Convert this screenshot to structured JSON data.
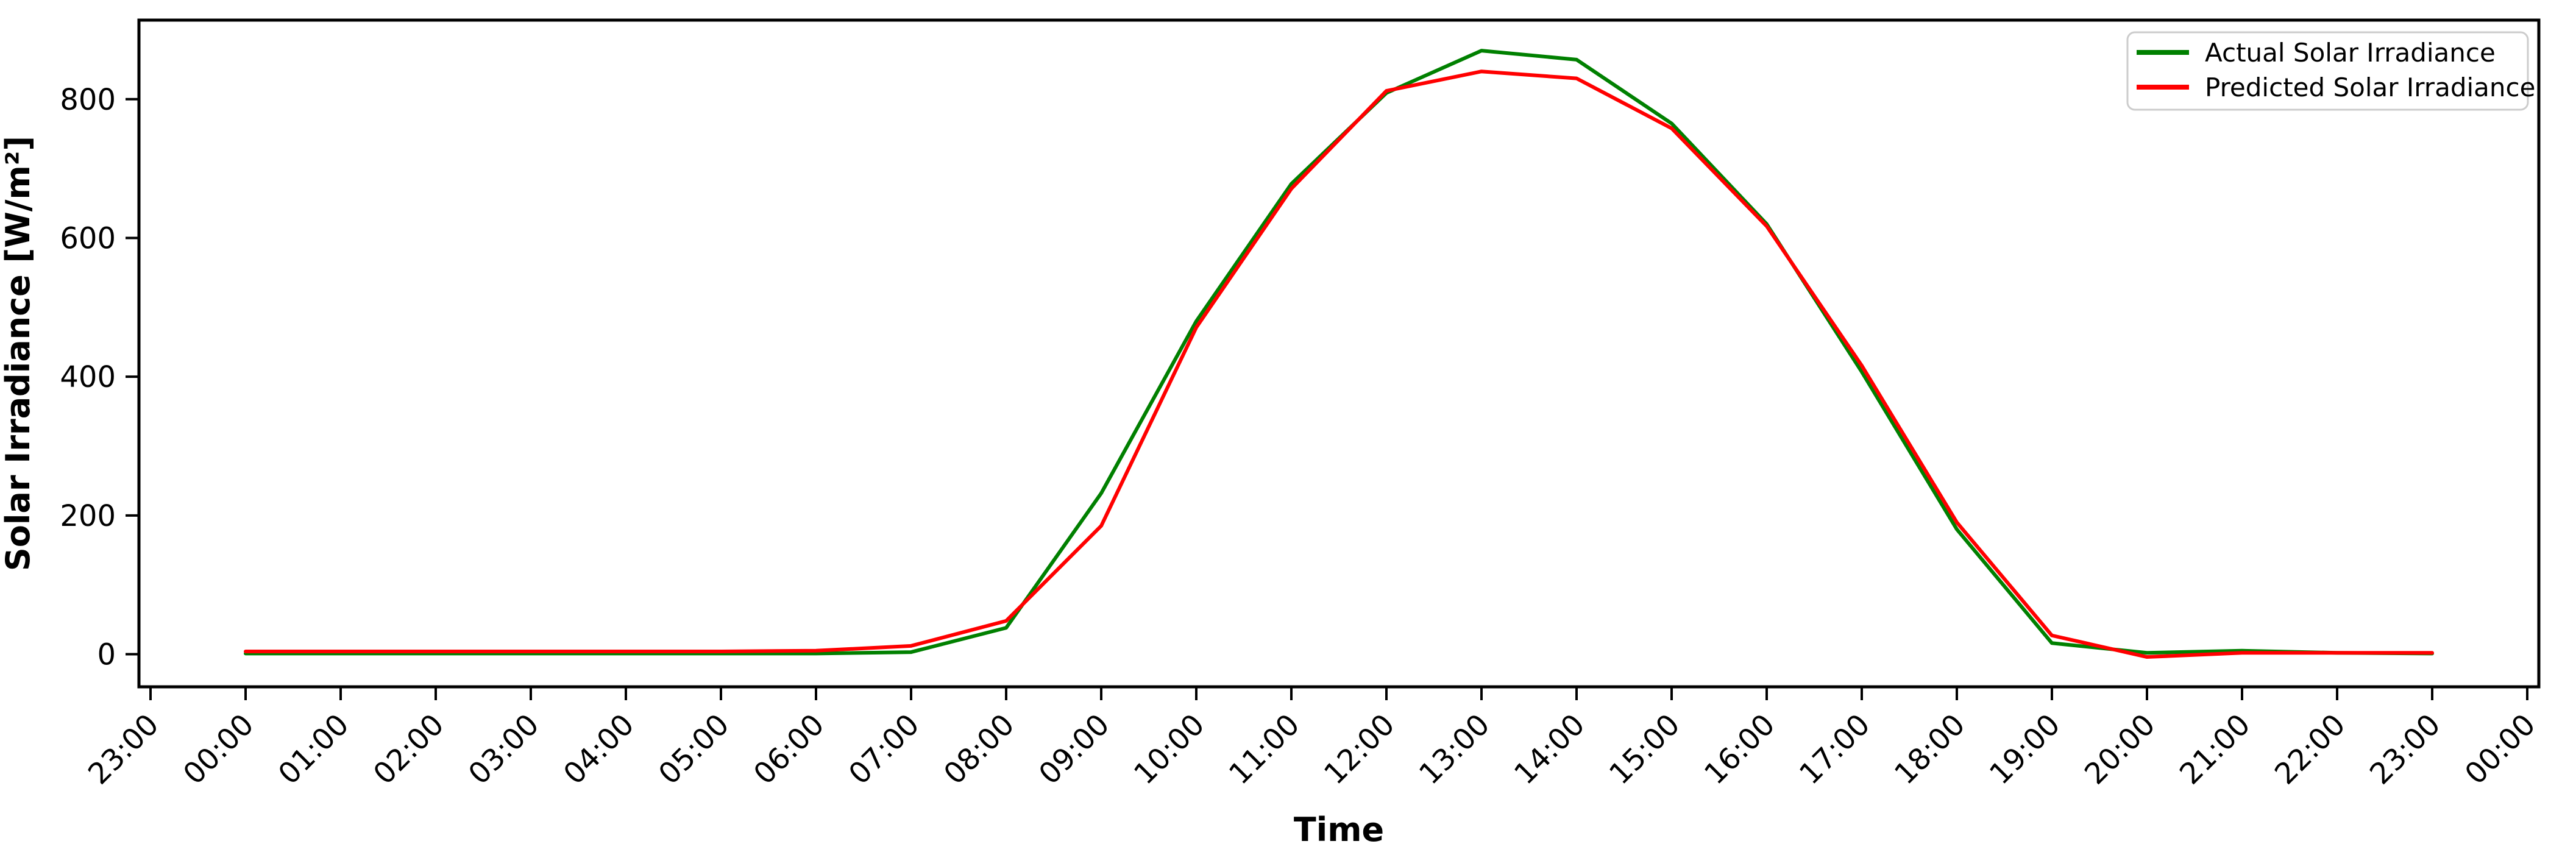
{
  "chart_data": {
    "type": "line",
    "title": "",
    "xlabel": "Time",
    "ylabel": "Solar Irradiance [W/m²]",
    "x_tick_labels": [
      "23:00",
      "00:00",
      "01:00",
      "02:00",
      "03:00",
      "04:00",
      "05:00",
      "06:00",
      "07:00",
      "08:00",
      "09:00",
      "10:00",
      "11:00",
      "12:00",
      "13:00",
      "14:00",
      "15:00",
      "16:00",
      "17:00",
      "18:00",
      "19:00",
      "20:00",
      "21:00",
      "22:00",
      "23:00",
      "00:00"
    ],
    "y_ticks": [
      0,
      200,
      400,
      600,
      800
    ],
    "ylim": [
      -47,
      914
    ],
    "grid": false,
    "legend_position": "upper right",
    "categories": [
      "00:00",
      "01:00",
      "02:00",
      "03:00",
      "04:00",
      "05:00",
      "06:00",
      "07:00",
      "08:00",
      "09:00",
      "10:00",
      "11:00",
      "12:00",
      "13:00",
      "14:00",
      "15:00",
      "16:00",
      "17:00",
      "18:00",
      "19:00",
      "20:00",
      "21:00",
      "22:00",
      "23:00"
    ],
    "series": [
      {
        "name": "Actual Solar Irradiance",
        "color": "#008000",
        "values": [
          1,
          1,
          1,
          1,
          1,
          1,
          1,
          3,
          38,
          232,
          480,
          678,
          809,
          870,
          857,
          765,
          620,
          407,
          180,
          16,
          2,
          5,
          2,
          1
        ]
      },
      {
        "name": "Predicted Solar Irradiance",
        "color": "#ff0000",
        "values": [
          4,
          4,
          4,
          4,
          4,
          4,
          5,
          12,
          48,
          185,
          471,
          671,
          812,
          840,
          830,
          758,
          617,
          416,
          190,
          27,
          -4,
          2,
          2,
          2
        ]
      }
    ]
  }
}
